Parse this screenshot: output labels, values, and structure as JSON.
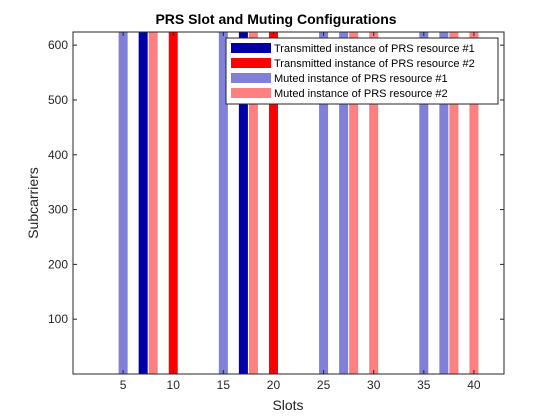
{
  "chart_data": {
    "type": "bar",
    "title": "PRS Slot and Muting Configurations",
    "xlabel": "Slots",
    "ylabel": "Subcarriers",
    "xlim": [
      0,
      43
    ],
    "ylim": [
      0,
      624
    ],
    "xticks": [
      5,
      10,
      15,
      20,
      25,
      30,
      35,
      40
    ],
    "yticks": [
      100,
      200,
      300,
      400,
      500,
      600
    ],
    "grid": false,
    "legend_position": "top-right",
    "series": [
      {
        "name": "Transmitted instance of PRS resource #1",
        "color": "#0000A8",
        "slots": [
          7,
          17
        ]
      },
      {
        "name": "Transmitted instance of PRS resource #2",
        "color": "#FF0000",
        "slots": [
          10,
          20
        ]
      },
      {
        "name": "Muted instance of PRS resource #1",
        "color": "#8080D8",
        "slots": [
          5,
          15,
          25,
          27,
          35,
          37
        ]
      },
      {
        "name": "Muted instance of PRS resource #2",
        "color": "#FF8080",
        "slots": [
          8,
          18,
          28,
          30,
          38,
          40
        ]
      }
    ]
  }
}
